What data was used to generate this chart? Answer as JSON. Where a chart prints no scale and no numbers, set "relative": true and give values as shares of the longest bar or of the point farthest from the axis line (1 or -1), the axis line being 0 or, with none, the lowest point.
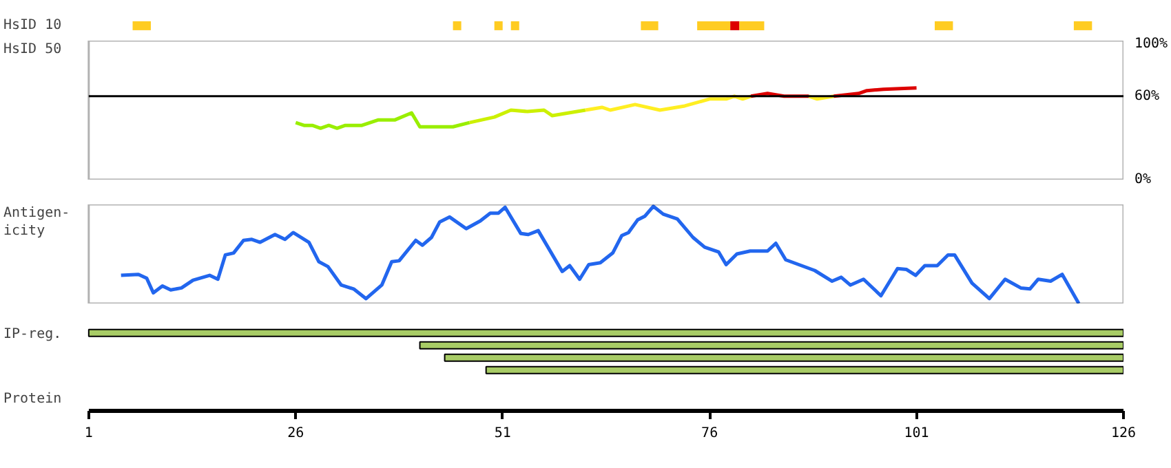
{
  "chart_data": [
    {
      "type": "bar",
      "orientation": "horizontal",
      "categories": [
        "HsID 10"
      ],
      "xlim": [
        1,
        126
      ],
      "tick_labels": false,
      "grid": false,
      "series": [
        {
          "color": "#ffcc22",
          "base": [
            6.3
          ],
          "values": [
            2.2
          ]
        },
        {
          "color": "#ffcc22",
          "base": [
            45
          ],
          "values": [
            1
          ]
        },
        {
          "color": "#ffcc22",
          "base": [
            50
          ],
          "values": [
            1
          ]
        },
        {
          "color": "#ffcc22",
          "base": [
            52
          ],
          "values": [
            1
          ]
        },
        {
          "color": "#ffcc22",
          "base": [
            67.7
          ],
          "values": [
            2.1
          ]
        },
        {
          "color": "#ffcc22",
          "base": [
            74.5
          ],
          "values": [
            4
          ]
        },
        {
          "color": "#dd0000",
          "base": [
            78.5
          ],
          "values": [
            1.1
          ]
        },
        {
          "color": "#ffcc22",
          "base": [
            79.6
          ],
          "values": [
            3
          ]
        },
        {
          "color": "#ffcc22",
          "base": [
            103.2
          ],
          "values": [
            2.2
          ]
        },
        {
          "color": "#ffcc22",
          "base": [
            120
          ],
          "values": [
            2.2
          ]
        }
      ]
    },
    {
      "type": "line",
      "ylabel": "HsID 50",
      "xlim": [
        1,
        126
      ],
      "ylim": [
        0,
        100
      ],
      "yticks": [
        {
          "value": 0,
          "label": "0%"
        },
        {
          "value": 60,
          "label": "60%"
        },
        {
          "value": 100,
          "label": "100%"
        }
      ],
      "tick_labels": "y",
      "grid": false,
      "ref_lines": [
        {
          "axis": "y",
          "value": 60,
          "color": "#000000"
        }
      ],
      "series": [
        {
          "color": "#99ee00",
          "x": [
            26,
            27,
            28,
            29,
            30,
            31,
            32,
            34,
            36,
            38,
            40,
            41,
            45,
            47
          ],
          "values": [
            41,
            39,
            39,
            37,
            39,
            37,
            39,
            39,
            43,
            43,
            48,
            38,
            38,
            41
          ]
        },
        {
          "color": "#ccf000",
          "x": [
            47,
            50,
            52,
            54,
            56,
            57,
            61
          ],
          "values": [
            41,
            45,
            50,
            49,
            50,
            46,
            50
          ]
        },
        {
          "color": "#ffee22",
          "x": [
            61,
            63,
            64,
            67,
            70,
            73,
            76,
            78,
            79,
            80,
            81
          ],
          "values": [
            50,
            52,
            50,
            54,
            50,
            53,
            58,
            58,
            60,
            58,
            60
          ]
        },
        {
          "color": "#dd0000",
          "x": [
            81,
            83,
            85,
            88
          ],
          "values": [
            60,
            62,
            60,
            60
          ]
        },
        {
          "color": "#ffee22",
          "x": [
            88,
            89,
            91
          ],
          "values": [
            60,
            58,
            60
          ]
        },
        {
          "color": "#dd0000",
          "x": [
            91,
            94,
            95,
            97,
            101
          ],
          "values": [
            60,
            62,
            64,
            65,
            66
          ]
        }
      ]
    },
    {
      "type": "line",
      "ylabel": "Antigen-\nicity",
      "relative": true,
      "xlim": [
        1,
        126
      ],
      "tick_labels": false,
      "grid": false,
      "series": [
        {
          "color": "#2266ee",
          "x": [
            4.9,
            7.0,
            8.0,
            8.8,
            9.9,
            10.9,
            12.2,
            13.6,
            15.6,
            16.6,
            17.5,
            18.5,
            19.7,
            20.7,
            21.7,
            23.5,
            24.7,
            25.7,
            27.6,
            28.8,
            29.9,
            31.5,
            33.0,
            34.5,
            36.4,
            37.6,
            38.5,
            40.5,
            41.3,
            42.4,
            43.4,
            44.6,
            46.6,
            48.3,
            49.5,
            50.5,
            51.3,
            53.2,
            54.1,
            55.3,
            58.2,
            59.1,
            60.3,
            61.4,
            62.8,
            64.3,
            65.4,
            66.2,
            67.3,
            68.2,
            69.2,
            70.4,
            72.1,
            74.0,
            75.4,
            77.1,
            78.0,
            79.3,
            80.9,
            83.0,
            84.0,
            85.2,
            88.7,
            90.8,
            91.9,
            93.0,
            94.6,
            96.7,
            98.7,
            99.8,
            100.9,
            102.0,
            103.5,
            104.8,
            105.6,
            107.7,
            109.8,
            111.7,
            113.6,
            114.7,
            115.7,
            117.2,
            118.6,
            120.6
          ],
          "values": [
            0.29,
            0.3,
            0.26,
            0.11,
            0.18,
            0.14,
            0.16,
            0.24,
            0.29,
            0.25,
            0.5,
            0.52,
            0.65,
            0.66,
            0.63,
            0.71,
            0.66,
            0.73,
            0.63,
            0.43,
            0.38,
            0.19,
            0.15,
            0.05,
            0.19,
            0.43,
            0.44,
            0.65,
            0.6,
            0.68,
            0.84,
            0.89,
            0.77,
            0.85,
            0.93,
            0.93,
            0.99,
            0.72,
            0.71,
            0.75,
            0.33,
            0.39,
            0.25,
            0.4,
            0.42,
            0.52,
            0.7,
            0.73,
            0.86,
            0.9,
            1.0,
            0.92,
            0.87,
            0.68,
            0.58,
            0.53,
            0.4,
            0.51,
            0.54,
            0.54,
            0.62,
            0.45,
            0.34,
            0.23,
            0.27,
            0.19,
            0.25,
            0.08,
            0.36,
            0.35,
            0.29,
            0.39,
            0.39,
            0.5,
            0.5,
            0.21,
            0.05,
            0.25,
            0.16,
            0.15,
            0.25,
            0.23,
            0.3,
            0.0
          ]
        }
      ]
    },
    {
      "type": "bar",
      "orientation": "horizontal",
      "ylabel": "IP-reg.",
      "xlabel": "Protein",
      "categories": [
        null,
        null,
        null,
        null
      ],
      "base": [
        1,
        41,
        44,
        49
      ],
      "values": [
        125,
        85,
        82,
        77
      ],
      "color": "#a8cc66",
      "xlim": [
        1,
        126
      ],
      "xticks": [
        1,
        26,
        51,
        76,
        101,
        126
      ],
      "tick_labels": "x",
      "grid": false
    }
  ]
}
